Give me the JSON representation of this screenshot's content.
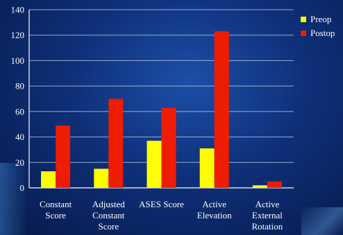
{
  "chart_data": {
    "type": "bar",
    "title": "",
    "xlabel": "",
    "ylabel": "",
    "ylim": [
      0,
      140
    ],
    "yticks": [
      0,
      20,
      40,
      60,
      80,
      100,
      120,
      140
    ],
    "grid": true,
    "legend_position": "top-right",
    "categories": [
      [
        "Constant",
        "Score"
      ],
      [
        "Adjusted",
        "Constant",
        "Score"
      ],
      [
        "ASES Score"
      ],
      [
        "Active",
        "Elevation"
      ],
      [
        "Active",
        "External",
        "Rotation"
      ]
    ],
    "series": [
      {
        "name": "Preop",
        "color": "#ffff00",
        "values": [
          13,
          15,
          37,
          31,
          2
        ]
      },
      {
        "name": "Postop",
        "color": "#ee1c00",
        "values": [
          49,
          70,
          63,
          123,
          5
        ]
      }
    ]
  }
}
